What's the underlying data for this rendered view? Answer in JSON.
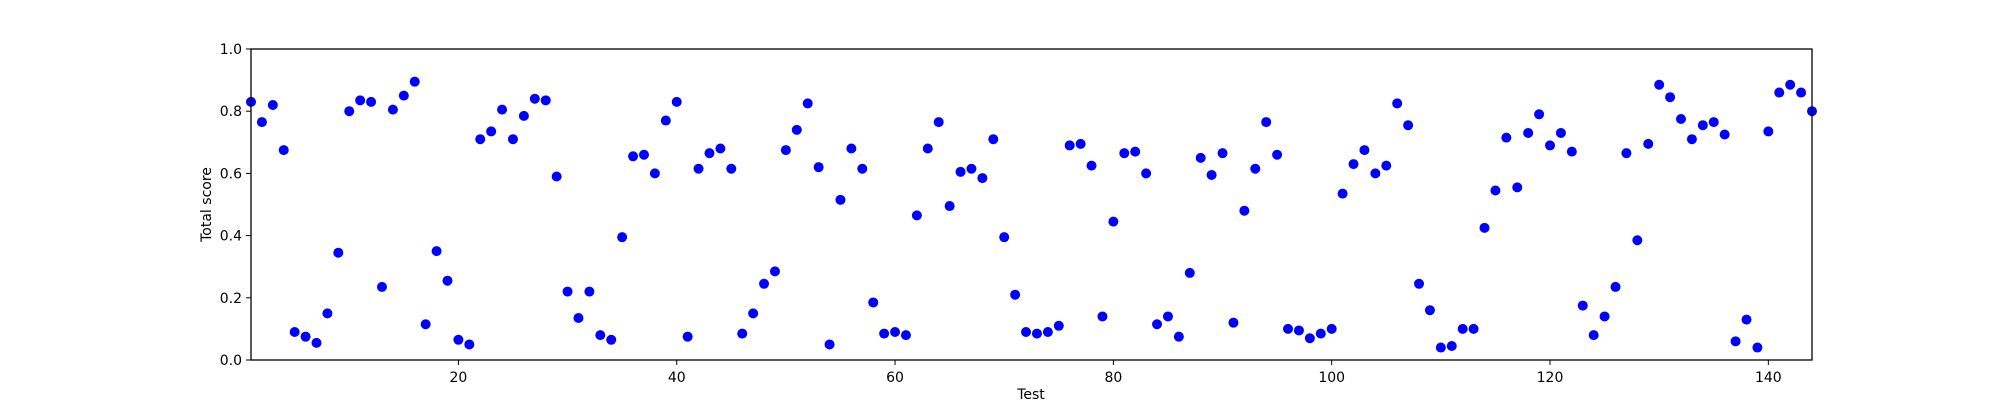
{
  "chart_data": {
    "type": "scatter",
    "title": "",
    "xlabel": "Test",
    "ylabel": "Total score",
    "xlim": [
      1,
      144
    ],
    "ylim": [
      0.0,
      1.0
    ],
    "x_ticks": [
      20,
      40,
      60,
      80,
      100,
      120,
      140
    ],
    "y_ticks": [
      0.0,
      0.2,
      0.4,
      0.6,
      0.8,
      1.0
    ],
    "x_tick_labels": [
      "20",
      "40",
      "60",
      "80",
      "100",
      "120",
      "140"
    ],
    "y_tick_labels": [
      "0.0",
      "0.2",
      "0.4",
      "0.6",
      "0.8",
      "1.0"
    ],
    "grid": false,
    "marker_color": "#0000ff",
    "x": [
      1,
      2,
      3,
      4,
      5,
      6,
      7,
      8,
      9,
      10,
      11,
      12,
      13,
      14,
      15,
      16,
      17,
      18,
      19,
      20,
      21,
      22,
      23,
      24,
      25,
      26,
      27,
      28,
      29,
      30,
      31,
      32,
      33,
      34,
      35,
      36,
      37,
      38,
      39,
      40,
      41,
      42,
      43,
      44,
      45,
      46,
      47,
      48,
      49,
      50,
      51,
      52,
      53,
      54,
      55,
      56,
      57,
      58,
      59,
      60,
      61,
      62,
      63,
      64,
      65,
      66,
      67,
      68,
      69,
      70,
      71,
      72,
      73,
      74,
      75,
      76,
      77,
      78,
      79,
      80,
      81,
      82,
      83,
      84,
      85,
      86,
      87,
      88,
      89,
      90,
      91,
      92,
      93,
      94,
      95,
      96,
      97,
      98,
      99,
      100,
      101,
      102,
      103,
      104,
      105,
      106,
      107,
      108,
      109,
      110,
      111,
      112,
      113,
      114,
      115,
      116,
      117,
      118,
      119,
      120,
      121,
      122,
      123,
      124,
      125,
      126,
      127,
      128,
      129,
      130,
      131,
      132,
      133,
      134,
      135,
      136,
      137,
      138,
      139,
      140,
      141,
      142,
      143,
      144
    ],
    "y": [
      0.83,
      0.765,
      0.82,
      0.675,
      0.09,
      0.075,
      0.055,
      0.15,
      0.345,
      0.8,
      0.835,
      0.83,
      0.235,
      0.805,
      0.85,
      0.895,
      0.115,
      0.35,
      0.255,
      0.065,
      0.05,
      0.71,
      0.735,
      0.805,
      0.71,
      0.785,
      0.84,
      0.835,
      0.59,
      0.22,
      0.135,
      0.22,
      0.08,
      0.065,
      0.395,
      0.655,
      0.66,
      0.6,
      0.77,
      0.83,
      0.075,
      0.615,
      0.665,
      0.68,
      0.615,
      0.085,
      0.15,
      0.245,
      0.285,
      0.675,
      0.74,
      0.825,
      0.62,
      0.05,
      0.515,
      0.68,
      0.615,
      0.185,
      0.085,
      0.09,
      0.08,
      0.465,
      0.68,
      0.765,
      0.495,
      0.605,
      0.615,
      0.585,
      0.71,
      0.395,
      0.21,
      0.09,
      0.085,
      0.09,
      0.11,
      0.69,
      0.695,
      0.625,
      0.14,
      0.445,
      0.665,
      0.67,
      0.6,
      0.115,
      0.14,
      0.075,
      0.28,
      0.65,
      0.595,
      0.665,
      0.12,
      0.48,
      0.615,
      0.765,
      0.66,
      0.1,
      0.095,
      0.07,
      0.085,
      0.1,
      0.535,
      0.63,
      0.675,
      0.6,
      0.625,
      0.825,
      0.755,
      0.245,
      0.16,
      0.04,
      0.045,
      0.1,
      0.1,
      0.425,
      0.545,
      0.715,
      0.555,
      0.73,
      0.79,
      0.69,
      0.73,
      0.67,
      0.175,
      0.08,
      0.14,
      0.235,
      0.665,
      0.385,
      0.695,
      0.885,
      0.845,
      0.775,
      0.71,
      0.755,
      0.765,
      0.725,
      0.06,
      0.13,
      0.04,
      0.735,
      0.86,
      0.885,
      0.86,
      0.8
    ]
  }
}
